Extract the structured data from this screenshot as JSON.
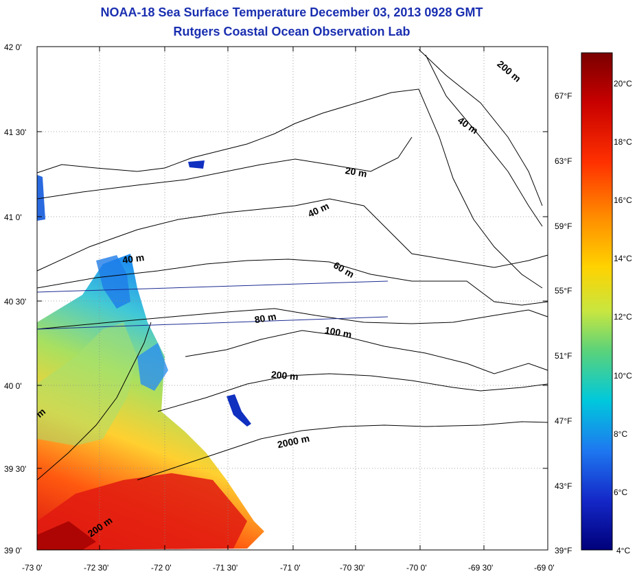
{
  "header": {
    "title": "NOAA-18 Sea Surface Temperature December 03, 2013 0928 GMT",
    "subtitle": "Rutgers Coastal Ocean Observation Lab"
  },
  "map": {
    "lat_labels": [
      "42 0'",
      "41 30'",
      "41 0'",
      "40 30'",
      "40 0'",
      "39 30'",
      "39 0'"
    ],
    "lon_labels": [
      "-73 0'",
      "-72 30'",
      "-72 0'",
      "-71 30'",
      "-71 0'",
      "-70 30'",
      "-70 0'",
      "-69 30'",
      "-69 0'"
    ],
    "contour_labels": [
      "200 m",
      "40 m",
      "20 m",
      "40 m",
      "40 m",
      "60 m",
      "80 m",
      "100 m",
      "200 m",
      "2000 m",
      "200 m",
      "m"
    ],
    "land_color": "#ffffff",
    "no_data_color": "#ffffff"
  },
  "colorbar": {
    "celsius_labels": [
      "20°C",
      "18°C",
      "16°C",
      "14°C",
      "12°C",
      "10°C",
      "8°C",
      "6°C",
      "4°C"
    ],
    "fahrenheit_labels": [
      "67°F",
      "63°F",
      "59°F",
      "55°F",
      "51°F",
      "47°F",
      "43°F",
      "39°F"
    ],
    "colors": [
      "#7a0000",
      "#c80000",
      "#ff3000",
      "#ff8c00",
      "#ffd200",
      "#c8e640",
      "#5ad27a",
      "#00c8dc",
      "#1e78f0",
      "#1428c8",
      "#00007a"
    ]
  }
}
